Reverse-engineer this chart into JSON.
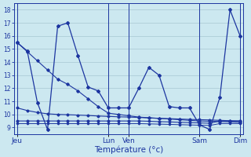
{
  "background_color": "#cce8f0",
  "line_color": "#1c35a0",
  "grid_color": "#9fbfcc",
  "xlabel": "Température (°c)",
  "ylim": [
    8.5,
    18.5
  ],
  "yticks": [
    9,
    10,
    11,
    12,
    13,
    14,
    15,
    16,
    17,
    18
  ],
  "xlim": [
    -0.3,
    22.3
  ],
  "xtick_positions": [
    0,
    9,
    11,
    18,
    22
  ],
  "xtick_labels": [
    "Jeu",
    "Lun",
    "Ven",
    "Sam",
    "Dim"
  ],
  "vlines": [
    0,
    9,
    11,
    18,
    22
  ],
  "line_main": [
    15.5,
    14.85,
    10.9,
    8.85,
    16.75,
    17.0,
    14.5,
    12.1,
    11.8,
    10.5,
    10.5,
    10.5,
    12.0,
    13.6,
    13.0,
    10.6,
    10.5,
    10.5,
    9.2,
    8.85,
    11.3,
    18.0,
    16.0
  ],
  "line_diag1": [
    15.5,
    14.8,
    14.1,
    13.4,
    12.7,
    12.3,
    11.8,
    11.2,
    10.6,
    10.1,
    10.0,
    9.9,
    9.8,
    9.75,
    9.7,
    9.65,
    9.6,
    9.55,
    9.5,
    9.48,
    9.45,
    9.43,
    9.4
  ],
  "line_flat1": [
    10.5,
    10.3,
    10.15,
    10.05,
    10.0,
    9.98,
    9.95,
    9.92,
    9.88,
    9.85,
    9.82,
    9.8,
    9.77,
    9.73,
    9.7,
    9.68,
    9.65,
    9.62,
    9.6,
    9.58,
    9.55,
    9.52,
    9.5
  ],
  "line_flat2": [
    9.5,
    9.5,
    9.5,
    9.5,
    9.5,
    9.5,
    9.5,
    9.5,
    9.5,
    9.5,
    9.5,
    9.5,
    9.5,
    9.48,
    9.45,
    9.43,
    9.4,
    9.38,
    9.35,
    9.33,
    9.5,
    9.5,
    9.5
  ],
  "line_flat3": [
    9.3,
    9.3,
    9.3,
    9.3,
    9.3,
    9.3,
    9.3,
    9.3,
    9.3,
    9.3,
    9.3,
    9.3,
    9.3,
    9.28,
    9.26,
    9.24,
    9.22,
    9.2,
    9.18,
    9.16,
    9.3,
    9.3,
    9.3
  ]
}
